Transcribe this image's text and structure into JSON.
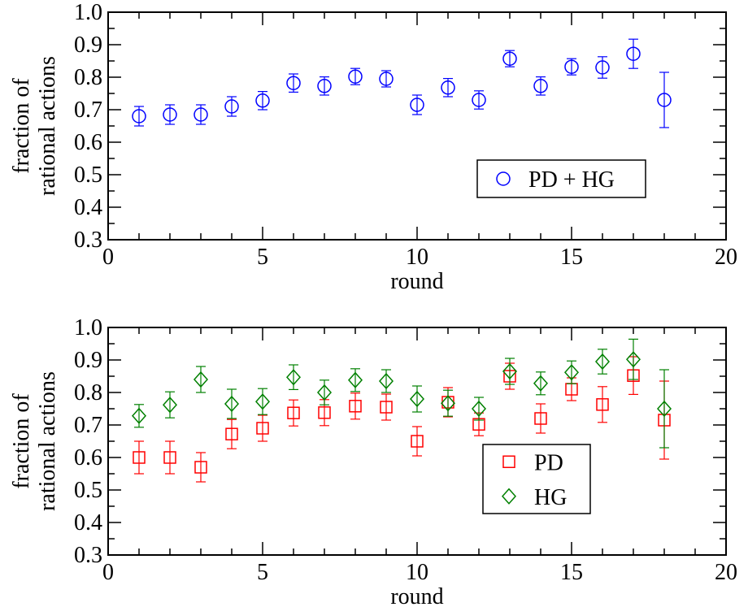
{
  "chart_data": [
    {
      "type": "scatter",
      "xlabel": "round",
      "ylabel": [
        "fraction of",
        "rational actions"
      ],
      "xlim": [
        0,
        20
      ],
      "ylim": [
        0.3,
        1.0
      ],
      "xticks": [
        0,
        5,
        10,
        15,
        20
      ],
      "xtick_labels": [
        "0",
        "5",
        "10",
        "15",
        "20"
      ],
      "yticks": [
        0.3,
        0.4,
        0.5,
        0.6,
        0.7,
        0.8,
        0.9,
        1.0
      ],
      "ytick_labels": [
        "0.3",
        "0.4",
        "0.5",
        "0.6",
        "0.7",
        "0.8",
        "0.9",
        "1.0"
      ],
      "grid": false,
      "legend": {
        "position": "lower-right"
      },
      "series": [
        {
          "name": "PD + HG",
          "marker": "circle",
          "color": "#0000ff",
          "x": [
            1,
            2,
            3,
            4,
            5,
            6,
            7,
            8,
            9,
            10,
            11,
            12,
            13,
            14,
            15,
            16,
            17,
            18
          ],
          "y": [
            0.68,
            0.685,
            0.685,
            0.71,
            0.728,
            0.782,
            0.773,
            0.802,
            0.795,
            0.715,
            0.768,
            0.73,
            0.857,
            0.773,
            0.832,
            0.83,
            0.872,
            0.73
          ],
          "err": [
            0.03,
            0.03,
            0.03,
            0.03,
            0.028,
            0.028,
            0.028,
            0.025,
            0.025,
            0.03,
            0.028,
            0.028,
            0.025,
            0.028,
            0.025,
            0.033,
            0.045,
            0.085
          ]
        }
      ]
    },
    {
      "type": "scatter",
      "xlabel": "round",
      "ylabel": [
        "fraction of",
        "rational actions"
      ],
      "xlim": [
        0,
        20
      ],
      "ylim": [
        0.3,
        1.0
      ],
      "xticks": [
        0,
        5,
        10,
        15,
        20
      ],
      "xtick_labels": [
        "0",
        "5",
        "10",
        "15",
        "20"
      ],
      "yticks": [
        0.3,
        0.4,
        0.5,
        0.6,
        0.7,
        0.8,
        0.9,
        1.0
      ],
      "ytick_labels": [
        "0.3",
        "0.4",
        "0.5",
        "0.6",
        "0.7",
        "0.8",
        "0.9",
        "1.0"
      ],
      "grid": false,
      "legend": {
        "position": "lower-right"
      },
      "series": [
        {
          "name": "PD",
          "marker": "square",
          "color": "#ff0000",
          "x": [
            1,
            2,
            3,
            4,
            5,
            6,
            7,
            8,
            9,
            10,
            11,
            12,
            13,
            14,
            15,
            16,
            17,
            18
          ],
          "y": [
            0.6,
            0.6,
            0.57,
            0.672,
            0.69,
            0.737,
            0.738,
            0.758,
            0.755,
            0.65,
            0.77,
            0.702,
            0.85,
            0.72,
            0.81,
            0.763,
            0.852,
            0.715
          ],
          "err": [
            0.05,
            0.05,
            0.045,
            0.045,
            0.04,
            0.04,
            0.04,
            0.04,
            0.04,
            0.045,
            0.045,
            0.035,
            0.04,
            0.045,
            0.035,
            0.055,
            0.058,
            0.12
          ]
        },
        {
          "name": "HG",
          "marker": "diamond",
          "color": "#008000",
          "x": [
            1,
            2,
            3,
            4,
            5,
            6,
            7,
            8,
            9,
            10,
            11,
            12,
            13,
            14,
            15,
            16,
            17,
            18
          ],
          "y": [
            0.728,
            0.762,
            0.84,
            0.765,
            0.772,
            0.847,
            0.8,
            0.838,
            0.835,
            0.78,
            0.767,
            0.75,
            0.865,
            0.828,
            0.862,
            0.895,
            0.902,
            0.75
          ],
          "err": [
            0.035,
            0.04,
            0.04,
            0.045,
            0.04,
            0.038,
            0.038,
            0.035,
            0.035,
            0.04,
            0.04,
            0.035,
            0.04,
            0.035,
            0.035,
            0.038,
            0.062,
            0.12
          ]
        }
      ]
    }
  ]
}
